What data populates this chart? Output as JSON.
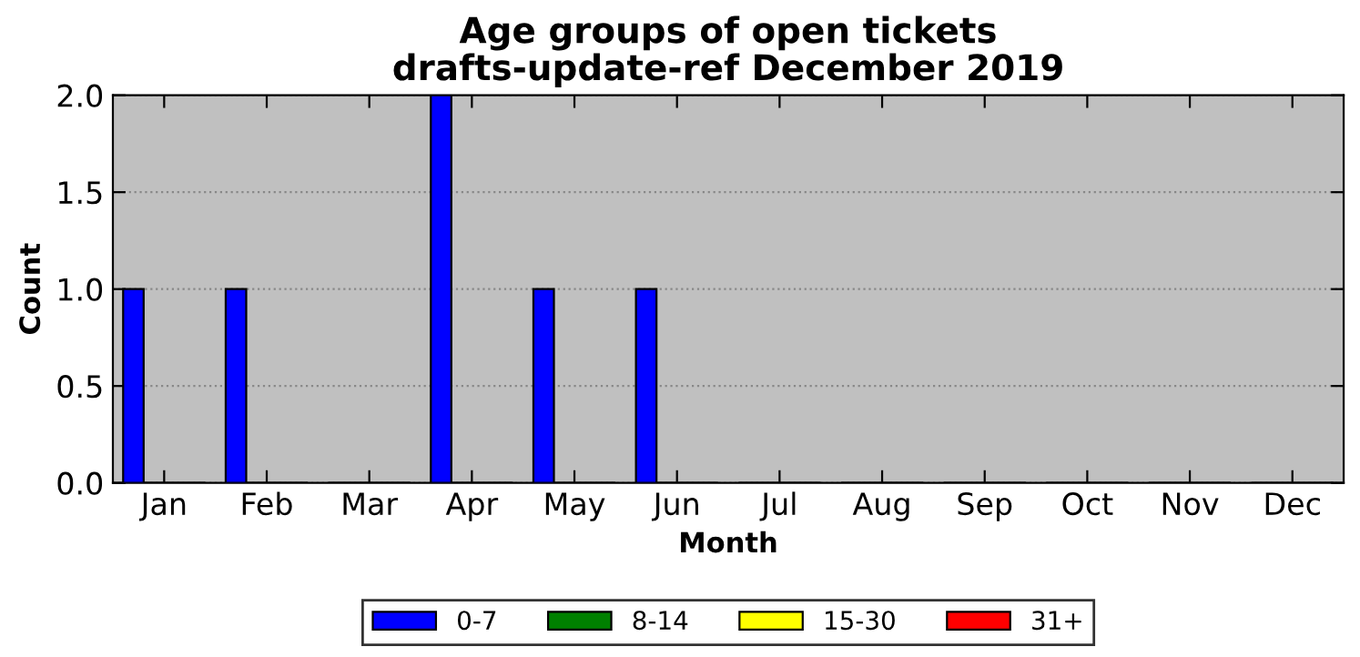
{
  "chart_data": {
    "type": "bar",
    "title": "Age groups of open tickets",
    "subtitle": "drafts-update-ref December 2019",
    "xlabel": "Month",
    "ylabel": "Count",
    "categories": [
      "Jan",
      "Feb",
      "Mar",
      "Apr",
      "May",
      "Jun",
      "Jul",
      "Aug",
      "Sep",
      "Oct",
      "Nov",
      "Dec"
    ],
    "series": [
      {
        "name": "0-7",
        "color": "#0000ff",
        "values": [
          1,
          1,
          0,
          2,
          1,
          1,
          0,
          0,
          0,
          0,
          0,
          0
        ]
      },
      {
        "name": "8-14",
        "color": "#008000",
        "values": [
          0,
          0,
          0,
          0,
          0,
          0,
          0,
          0,
          0,
          0,
          0,
          0
        ]
      },
      {
        "name": "15-30",
        "color": "#ffff00",
        "values": [
          0,
          0,
          0,
          0,
          0,
          0,
          0,
          0,
          0,
          0,
          0,
          0
        ]
      },
      {
        "name": "31+",
        "color": "#ff0000",
        "values": [
          0,
          0,
          0,
          0,
          0,
          0,
          0,
          0,
          0,
          0,
          0,
          0
        ]
      }
    ],
    "ylim": [
      0,
      2
    ],
    "yticks": [
      {
        "value": 0,
        "label": "0.0"
      },
      {
        "value": 0.5,
        "label": "0.5"
      },
      {
        "value": 1,
        "label": "1.0"
      },
      {
        "value": 1.5,
        "label": "1.5"
      },
      {
        "value": 2,
        "label": "2.0"
      }
    ],
    "grid": "y",
    "legend": "bottom"
  }
}
